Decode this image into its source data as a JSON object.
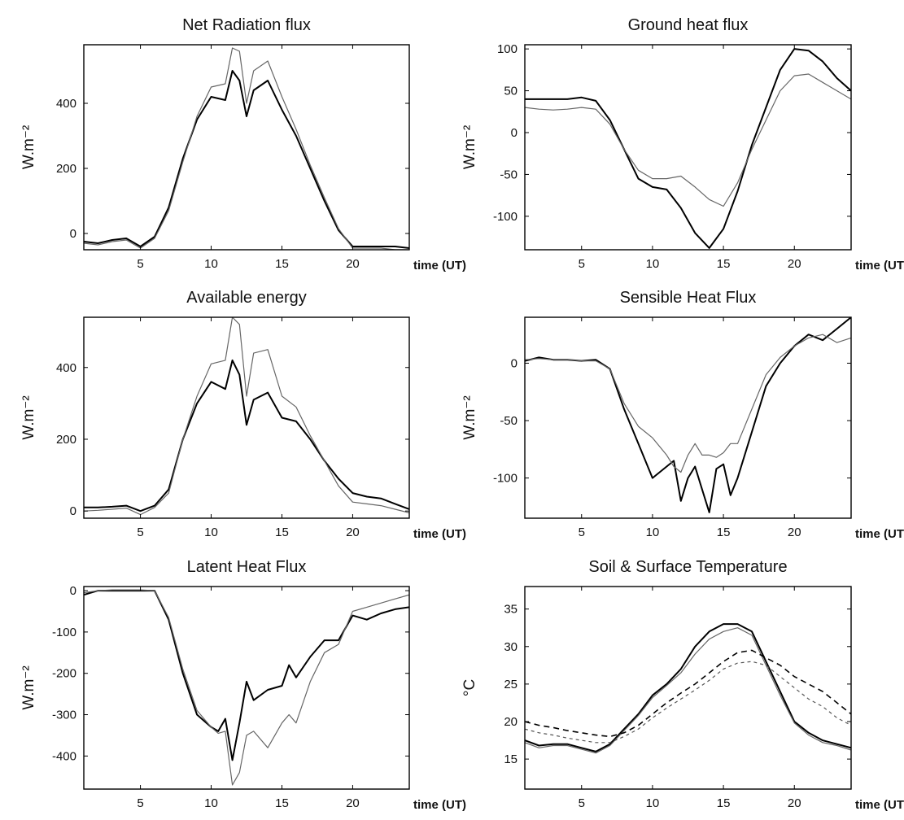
{
  "chart_data": [
    {
      "type": "line",
      "title": "Net Radiation flux",
      "ylabel": "W.m⁻²",
      "xlabel": "time (UT)",
      "xlim": [
        1,
        24
      ],
      "ylim": [
        -50,
        580
      ],
      "xticks": [
        5,
        10,
        15,
        20
      ],
      "yticks": [
        0,
        200,
        400
      ],
      "grid": false,
      "series": [
        {
          "style": "dark",
          "x": [
            1,
            2,
            3,
            4,
            5,
            6,
            7,
            8,
            9,
            10,
            11,
            11.5,
            12,
            12.5,
            13,
            14,
            15,
            16,
            17,
            18,
            19,
            20,
            21,
            22,
            23,
            24
          ],
          "y": [
            -25,
            -30,
            -20,
            -15,
            -40,
            -10,
            80,
            230,
            350,
            420,
            410,
            500,
            470,
            360,
            440,
            470,
            380,
            300,
            200,
            100,
            10,
            -40,
            -40,
            -40,
            -40,
            -45
          ]
        },
        {
          "style": "light",
          "x": [
            1,
            2,
            3,
            4,
            5,
            6,
            7,
            8,
            9,
            10,
            11,
            11.5,
            12,
            12.5,
            13,
            14,
            15,
            16,
            17,
            18,
            19,
            20,
            21,
            22,
            23,
            24
          ],
          "y": [
            -30,
            -35,
            -25,
            -20,
            -45,
            -15,
            70,
            220,
            360,
            450,
            460,
            570,
            560,
            400,
            500,
            530,
            420,
            320,
            210,
            110,
            15,
            -45,
            -45,
            -45,
            -50,
            -50
          ]
        }
      ]
    },
    {
      "type": "line",
      "title": "Ground heat flux",
      "ylabel": "W.m⁻²",
      "xlabel": "time (UT)",
      "xlim": [
        1,
        24
      ],
      "ylim": [
        -140,
        105
      ],
      "xticks": [
        5,
        10,
        15,
        20
      ],
      "yticks": [
        100,
        50,
        0,
        -50,
        -100
      ],
      "grid": false,
      "series": [
        {
          "style": "dark",
          "x": [
            1,
            2,
            3,
            4,
            5,
            6,
            7,
            8,
            9,
            10,
            11,
            12,
            13,
            14,
            15,
            16,
            17,
            18,
            19,
            20,
            21,
            22,
            23,
            24
          ],
          "y": [
            40,
            40,
            40,
            40,
            42,
            38,
            15,
            -20,
            -55,
            -65,
            -68,
            -90,
            -120,
            -138,
            -115,
            -70,
            -15,
            30,
            75,
            100,
            98,
            85,
            65,
            50
          ]
        },
        {
          "style": "light",
          "x": [
            1,
            2,
            3,
            4,
            5,
            6,
            7,
            8,
            9,
            10,
            11,
            12,
            13,
            14,
            15,
            16,
            17,
            18,
            19,
            20,
            21,
            22,
            23,
            24
          ],
          "y": [
            30,
            28,
            27,
            28,
            30,
            28,
            10,
            -20,
            -45,
            -55,
            -55,
            -52,
            -65,
            -80,
            -88,
            -60,
            -20,
            15,
            50,
            68,
            70,
            60,
            50,
            40
          ]
        }
      ]
    },
    {
      "type": "line",
      "title": "Available energy",
      "ylabel": "W.m⁻²",
      "xlabel": "time (UT)",
      "xlim": [
        1,
        24
      ],
      "ylim": [
        -20,
        540
      ],
      "xticks": [
        5,
        10,
        15,
        20
      ],
      "yticks": [
        0,
        200,
        400
      ],
      "grid": false,
      "series": [
        {
          "style": "dark",
          "x": [
            1,
            2,
            3,
            4,
            5,
            6,
            7,
            8,
            9,
            10,
            11,
            11.5,
            12,
            12.5,
            13,
            14,
            15,
            16,
            17,
            18,
            19,
            20,
            21,
            22,
            23,
            24
          ],
          "y": [
            10,
            10,
            12,
            15,
            0,
            15,
            60,
            200,
            300,
            360,
            340,
            420,
            380,
            240,
            310,
            330,
            260,
            250,
            200,
            140,
            90,
            50,
            40,
            35,
            20,
            5
          ]
        },
        {
          "style": "light",
          "x": [
            1,
            2,
            3,
            4,
            5,
            6,
            7,
            8,
            9,
            10,
            11,
            11.5,
            12,
            12.5,
            13,
            14,
            15,
            16,
            17,
            18,
            19,
            20,
            21,
            22,
            23,
            24
          ],
          "y": [
            0,
            2,
            5,
            8,
            -10,
            10,
            50,
            200,
            320,
            410,
            420,
            540,
            520,
            320,
            440,
            450,
            320,
            290,
            210,
            140,
            70,
            25,
            20,
            15,
            5,
            -5
          ]
        }
      ]
    },
    {
      "type": "line",
      "title": "Sensible Heat Flux",
      "ylabel": "W.m⁻²",
      "xlabel": "time (UT)",
      "xlim": [
        1,
        24
      ],
      "ylim": [
        -135,
        40
      ],
      "xticks": [
        5,
        10,
        15,
        20
      ],
      "yticks": [
        0,
        -50,
        -100
      ],
      "grid": false,
      "series": [
        {
          "style": "dark",
          "x": [
            1,
            2,
            3,
            4,
            5,
            6,
            7,
            8,
            9,
            10,
            11,
            11.5,
            12,
            12.5,
            13,
            13.5,
            14,
            14.5,
            15,
            15.5,
            16,
            17,
            18,
            19,
            20,
            21,
            22,
            23,
            24
          ],
          "y": [
            2,
            5,
            3,
            3,
            2,
            3,
            -5,
            -40,
            -70,
            -100,
            -90,
            -85,
            -120,
            -100,
            -90,
            -110,
            -130,
            -92,
            -88,
            -115,
            -100,
            -60,
            -20,
            0,
            15,
            25,
            20,
            30,
            40
          ]
        },
        {
          "style": "light",
          "x": [
            1,
            2,
            3,
            4,
            5,
            6,
            7,
            8,
            9,
            10,
            11,
            11.5,
            12,
            12.5,
            13,
            13.5,
            14,
            14.5,
            15,
            15.5,
            16,
            17,
            18,
            19,
            20,
            21,
            22,
            23,
            24
          ],
          "y": [
            3,
            4,
            3,
            3,
            2,
            2,
            -5,
            -35,
            -55,
            -65,
            -80,
            -90,
            -95,
            -80,
            -70,
            -80,
            -80,
            -82,
            -78,
            -70,
            -70,
            -40,
            -10,
            5,
            15,
            22,
            25,
            18,
            22
          ]
        }
      ]
    },
    {
      "type": "line",
      "title": "Latent Heat Flux",
      "ylabel": "W.m⁻²",
      "xlabel": "time (UT)",
      "xlim": [
        1,
        24
      ],
      "ylim": [
        -480,
        10
      ],
      "xticks": [
        5,
        10,
        15,
        20
      ],
      "yticks": [
        0,
        -100,
        -200,
        -300,
        -400
      ],
      "grid": false,
      "series": [
        {
          "style": "dark",
          "x": [
            1,
            2,
            3,
            4,
            5,
            6,
            7,
            8,
            9,
            10,
            10.5,
            11,
            11.5,
            12,
            12.5,
            13,
            14,
            15,
            15.5,
            16,
            17,
            18,
            19,
            20,
            21,
            22,
            23,
            24
          ],
          "y": [
            -10,
            0,
            0,
            0,
            0,
            0,
            -70,
            -200,
            -300,
            -330,
            -340,
            -310,
            -410,
            -320,
            -220,
            -265,
            -240,
            -230,
            -180,
            -210,
            -160,
            -120,
            -120,
            -60,
            -70,
            -55,
            -45,
            -40
          ]
        },
        {
          "style": "light",
          "x": [
            1,
            2,
            3,
            4,
            5,
            6,
            7,
            8,
            9,
            10,
            10.5,
            11,
            11.5,
            12,
            12.5,
            13,
            14,
            15,
            15.5,
            16,
            17,
            18,
            19,
            20,
            21,
            22,
            23,
            24
          ],
          "y": [
            -5,
            0,
            2,
            2,
            2,
            0,
            -65,
            -190,
            -290,
            -330,
            -345,
            -340,
            -470,
            -440,
            -350,
            -340,
            -380,
            -320,
            -300,
            -320,
            -220,
            -150,
            -130,
            -50,
            -40,
            -30,
            -20,
            -10
          ]
        }
      ]
    },
    {
      "type": "line",
      "title": "Soil & Surface Temperature",
      "ylabel": "°C",
      "xlabel": "time (UT)",
      "xlim": [
        1,
        24
      ],
      "ylim": [
        11,
        38
      ],
      "xticks": [
        5,
        10,
        15,
        20
      ],
      "yticks": [
        15,
        20,
        25,
        30,
        35
      ],
      "grid": false,
      "series": [
        {
          "style": "dark",
          "x": [
            1,
            2,
            3,
            4,
            5,
            6,
            7,
            8,
            9,
            10,
            11,
            12,
            13,
            14,
            15,
            16,
            17,
            18,
            19,
            20,
            21,
            22,
            23,
            24
          ],
          "y": [
            17.5,
            16.8,
            17,
            17,
            16.5,
            16,
            17,
            19,
            21,
            23.5,
            25,
            27,
            30,
            32,
            33,
            33,
            32,
            28,
            24,
            20,
            18.5,
            17.5,
            17,
            16.5
          ]
        },
        {
          "style": "light",
          "x": [
            1,
            2,
            3,
            4,
            5,
            6,
            7,
            8,
            9,
            10,
            11,
            12,
            13,
            14,
            15,
            16,
            17,
            18,
            19,
            20,
            21,
            22,
            23,
            24
          ],
          "y": [
            17.2,
            16.5,
            16.8,
            16.8,
            16.3,
            15.8,
            16.8,
            18.8,
            20.8,
            23.2,
            24.8,
            26.5,
            29,
            31,
            32,
            32.5,
            31.5,
            27.5,
            23.5,
            19.8,
            18.2,
            17.2,
            16.8,
            16.2
          ]
        },
        {
          "style": "dash-dark",
          "x": [
            1,
            2,
            3,
            4,
            5,
            6,
            7,
            8,
            9,
            10,
            11,
            12,
            13,
            14,
            15,
            16,
            17,
            18,
            19,
            20,
            21,
            22,
            23,
            24
          ],
          "y": [
            20,
            19.5,
            19.2,
            18.8,
            18.5,
            18.2,
            18,
            18.5,
            19.5,
            21,
            22.5,
            23.8,
            25,
            26.5,
            28,
            29.2,
            29.5,
            28.5,
            27.5,
            26,
            25,
            24,
            22.5,
            21
          ]
        },
        {
          "style": "dash-light",
          "x": [
            1,
            2,
            3,
            4,
            5,
            6,
            7,
            8,
            9,
            10,
            11,
            12,
            13,
            14,
            15,
            16,
            17,
            18,
            19,
            20,
            21,
            22,
            23,
            24
          ],
          "y": [
            19,
            18.5,
            18.2,
            17.8,
            17.5,
            17.2,
            17.2,
            18,
            19,
            20.5,
            21.8,
            23,
            24.2,
            25.5,
            27,
            27.8,
            28,
            27.5,
            26,
            24.5,
            23,
            22,
            20.5,
            19.5
          ]
        }
      ]
    }
  ]
}
